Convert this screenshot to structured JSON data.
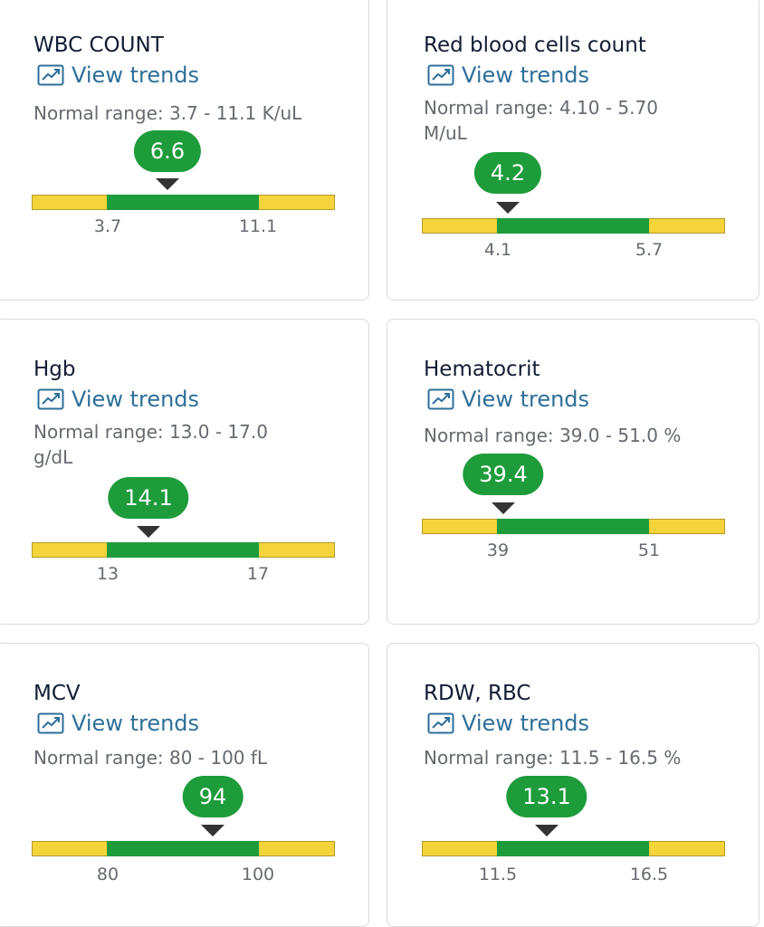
{
  "trends_label": "View trends",
  "colors": {
    "in_range": "#1e9c3b",
    "out_of_range": "#f4d43a",
    "link": "#2e6f99"
  },
  "cards": [
    {
      "name": "WBC COUNT",
      "normal_range": "Normal range: 3.7 - 11.1 K/uL",
      "value": "6.6",
      "low": "3.7",
      "high": "11.1"
    },
    {
      "name": "Red blood cells count",
      "normal_range": "Normal range: 4.10 - 5.70 M/uL",
      "value": "4.2",
      "low": "4.1",
      "high": "5.7"
    },
    {
      "name": "Hgb",
      "normal_range": "Normal range: 13.0 - 17.0 g/dL",
      "value": "14.1",
      "low": "13",
      "high": "17"
    },
    {
      "name": "Hematocrit",
      "normal_range": "Normal range: 39.0 - 51.0 %",
      "value": "39.4",
      "low": "39",
      "high": "51"
    },
    {
      "name": "MCV",
      "normal_range": "Normal range: 80 - 100 fL",
      "value": "94",
      "low": "80",
      "high": "100"
    },
    {
      "name": "RDW, RBC",
      "normal_range": "Normal range: 11.5 - 16.5 %",
      "value": "13.1",
      "low": "11.5",
      "high": "16.5"
    }
  ]
}
